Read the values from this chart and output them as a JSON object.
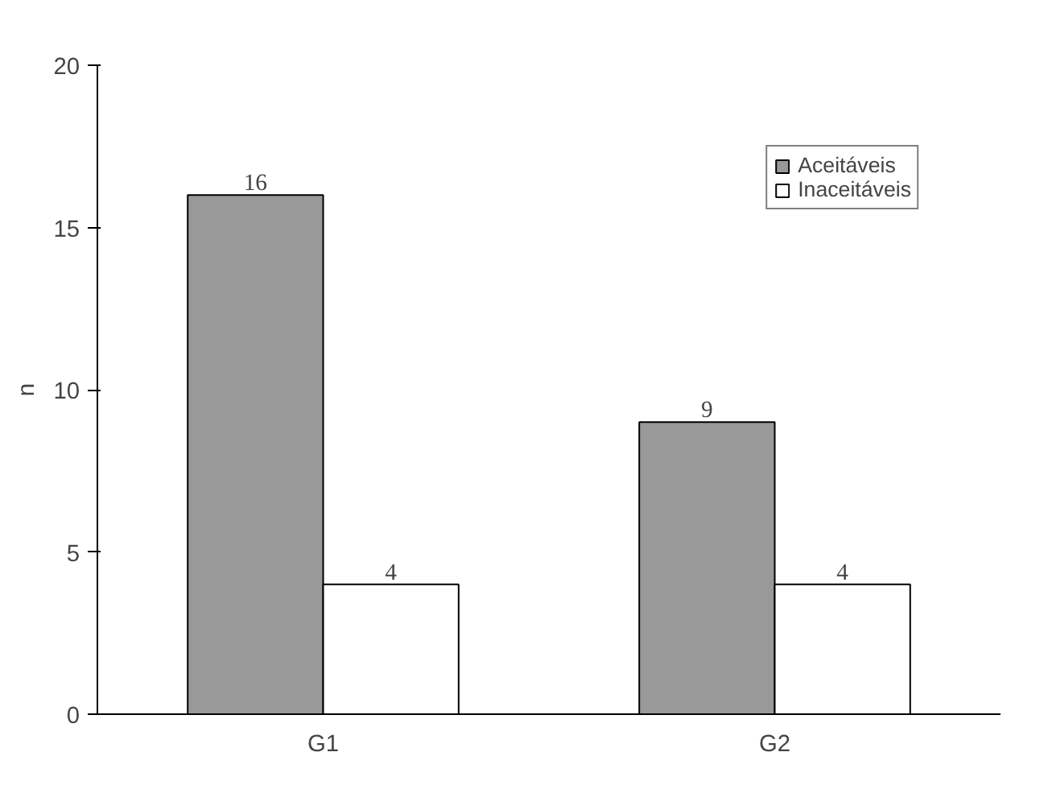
{
  "chart_data": {
    "type": "bar",
    "ylabel": "n",
    "categories": [
      "G1",
      "G2"
    ],
    "series": [
      {
        "name": "Aceitáveis",
        "color": "#999999",
        "values": [
          16,
          9
        ]
      },
      {
        "name": "Inaceitáveis",
        "color": "#ffffff",
        "values": [
          4,
          4
        ]
      }
    ],
    "ylim": [
      0,
      20
    ],
    "yticks": [
      0,
      5,
      10,
      15,
      20
    ],
    "data_labels": true,
    "legend": "top right",
    "grid": false
  }
}
